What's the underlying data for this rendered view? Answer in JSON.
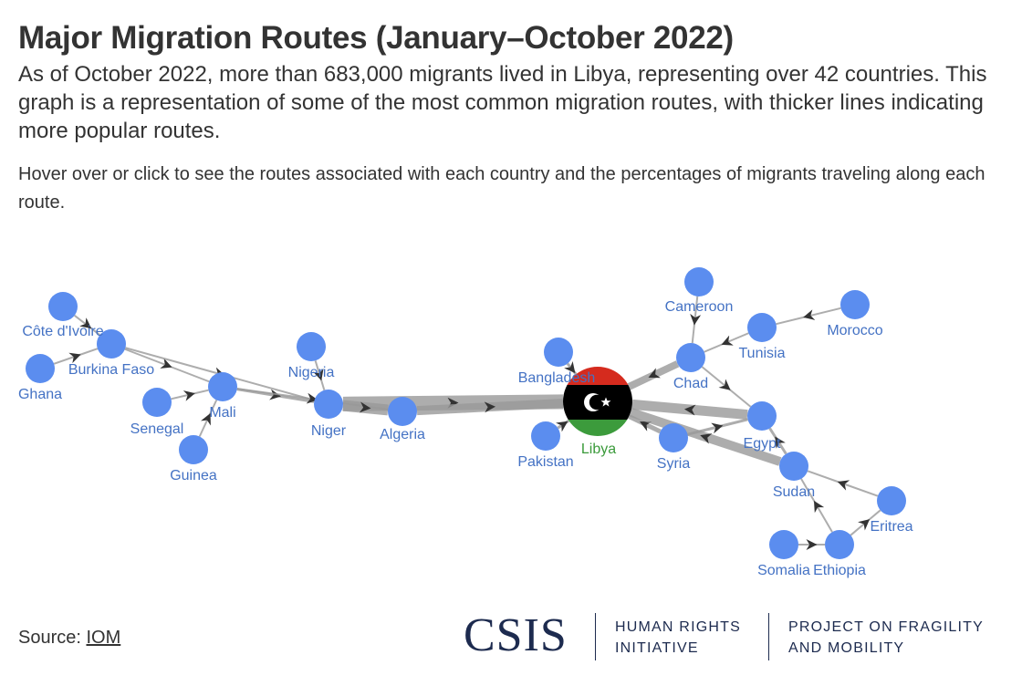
{
  "title": "Major Migration Routes (January–October 2022)",
  "subtitle": "As of October 2022, more than 683,000 migrants lived in Libya, representing over 42 countries. This graph is a representation of some of the most common migration routes, with thicker lines indicating more popular routes.",
  "caption": "Hover over or click to see the routes associated with each country and the percentages of migrants traveling along each route.",
  "source": {
    "label": "Source: ",
    "link_text": "IOM"
  },
  "logo": {
    "csis": "CSIS",
    "hri_line1": "HUMAN RIGHTS",
    "hri_line2": "INITIATIVE",
    "pfm_line1": "PROJECT ON FRAGILITY",
    "pfm_line2": "AND MOBILITY"
  },
  "colors": {
    "node": "#5b8def",
    "node_label": "#4472c4",
    "libya_label": "#3a9a3a",
    "edge": "#999999",
    "flag_red": "#d52b1e",
    "flag_black": "#000000",
    "flag_green": "#3c9b3c",
    "logo": "#1d2b4f"
  },
  "network": {
    "nodes": [
      {
        "id": "cote",
        "label": "Côte d'Ivoire"
      },
      {
        "id": "burkina",
        "label": "Burkina Faso"
      },
      {
        "id": "ghana",
        "label": "Ghana"
      },
      {
        "id": "mali",
        "label": "Mali"
      },
      {
        "id": "senegal",
        "label": "Senegal"
      },
      {
        "id": "guinea",
        "label": "Guinea"
      },
      {
        "id": "nigeria",
        "label": "Nigeria"
      },
      {
        "id": "niger",
        "label": "Niger"
      },
      {
        "id": "algeria",
        "label": "Algeria"
      },
      {
        "id": "bangladesh",
        "label": "Bangladesh"
      },
      {
        "id": "pakistan",
        "label": "Pakistan"
      },
      {
        "id": "libya",
        "label": "Libya"
      },
      {
        "id": "cameroon",
        "label": "Cameroon"
      },
      {
        "id": "morocco",
        "label": "Morocco"
      },
      {
        "id": "tunisia",
        "label": "Tunisia"
      },
      {
        "id": "chad",
        "label": "Chad"
      },
      {
        "id": "egypt",
        "label": "Egypt"
      },
      {
        "id": "syria",
        "label": "Syria"
      },
      {
        "id": "sudan",
        "label": "Sudan"
      },
      {
        "id": "eritrea",
        "label": "Eritrea"
      },
      {
        "id": "ethiopia",
        "label": "Ethiopia"
      },
      {
        "id": "somalia",
        "label": "Somalia"
      }
    ],
    "edges": [
      {
        "source": "cote",
        "target": "burkina"
      },
      {
        "source": "ghana",
        "target": "burkina"
      },
      {
        "source": "burkina",
        "target": "mali"
      },
      {
        "source": "burkina",
        "target": "niger"
      },
      {
        "source": "senegal",
        "target": "mali"
      },
      {
        "source": "guinea",
        "target": "mali"
      },
      {
        "source": "mali",
        "target": "niger"
      },
      {
        "source": "mali",
        "target": "algeria"
      },
      {
        "source": "nigeria",
        "target": "niger"
      },
      {
        "source": "niger",
        "target": "libya"
      },
      {
        "source": "niger",
        "target": "algeria"
      },
      {
        "source": "algeria",
        "target": "libya"
      },
      {
        "source": "bangladesh",
        "target": "libya"
      },
      {
        "source": "pakistan",
        "target": "libya"
      },
      {
        "source": "cameroon",
        "target": "chad"
      },
      {
        "source": "morocco",
        "target": "tunisia"
      },
      {
        "source": "tunisia",
        "target": "chad"
      },
      {
        "source": "chad",
        "target": "libya"
      },
      {
        "source": "chad",
        "target": "egypt"
      },
      {
        "source": "egypt",
        "target": "libya"
      },
      {
        "source": "syria",
        "target": "egypt"
      },
      {
        "source": "syria",
        "target": "libya"
      },
      {
        "source": "sudan",
        "target": "libya"
      },
      {
        "source": "sudan",
        "target": "egypt"
      },
      {
        "source": "eritrea",
        "target": "sudan"
      },
      {
        "source": "ethiopia",
        "target": "sudan"
      },
      {
        "source": "ethiopia",
        "target": "eritrea"
      },
      {
        "source": "somalia",
        "target": "ethiopia"
      }
    ]
  }
}
